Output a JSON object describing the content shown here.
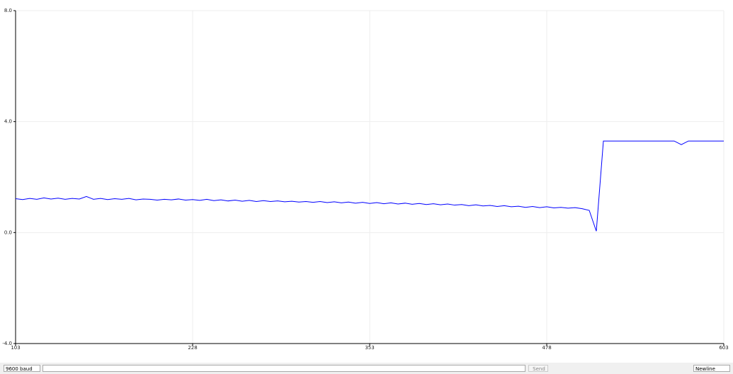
{
  "chart_data": {
    "type": "line",
    "color": "#0000ff",
    "grid": true,
    "x": [
      103,
      108,
      113,
      118,
      123,
      128,
      133,
      138,
      143,
      148,
      153,
      158,
      163,
      168,
      173,
      178,
      183,
      188,
      193,
      198,
      203,
      208,
      213,
      218,
      223,
      228,
      233,
      238,
      243,
      248,
      253,
      258,
      263,
      268,
      273,
      278,
      283,
      288,
      293,
      298,
      303,
      308,
      313,
      318,
      323,
      328,
      333,
      338,
      343,
      348,
      353,
      358,
      363,
      368,
      373,
      378,
      383,
      388,
      393,
      398,
      403,
      408,
      413,
      418,
      423,
      428,
      433,
      438,
      443,
      448,
      453,
      458,
      463,
      468,
      473,
      478,
      483,
      488,
      493,
      498,
      503,
      508,
      513,
      518,
      523,
      528,
      533,
      538,
      543,
      548,
      553,
      558,
      563,
      568,
      573,
      578,
      583,
      588,
      593,
      598,
      603
    ],
    "values": [
      1.22,
      1.19,
      1.23,
      1.2,
      1.25,
      1.21,
      1.24,
      1.2,
      1.23,
      1.21,
      1.3,
      1.2,
      1.23,
      1.19,
      1.22,
      1.2,
      1.23,
      1.18,
      1.21,
      1.2,
      1.17,
      1.2,
      1.18,
      1.21,
      1.17,
      1.19,
      1.16,
      1.2,
      1.15,
      1.18,
      1.14,
      1.17,
      1.13,
      1.16,
      1.12,
      1.15,
      1.12,
      1.14,
      1.11,
      1.13,
      1.1,
      1.12,
      1.09,
      1.12,
      1.08,
      1.11,
      1.07,
      1.1,
      1.06,
      1.09,
      1.05,
      1.08,
      1.04,
      1.07,
      1.03,
      1.06,
      1.02,
      1.05,
      1.01,
      1.04,
      1.0,
      1.03,
      0.99,
      1.01,
      0.97,
      1.0,
      0.96,
      0.98,
      0.94,
      0.97,
      0.93,
      0.95,
      0.91,
      0.94,
      0.9,
      0.93,
      0.89,
      0.91,
      0.88,
      0.9,
      0.86,
      0.8,
      0.05,
      3.3,
      3.3,
      3.3,
      3.3,
      3.3,
      3.3,
      3.3,
      3.3,
      3.3,
      3.3,
      3.3,
      3.17,
      3.3,
      3.3,
      3.3,
      3.3,
      3.3,
      3.3
    ],
    "xlim": [
      103,
      603
    ],
    "xticks": [
      103,
      228,
      353,
      478,
      603
    ],
    "ylim": [
      -4,
      8
    ],
    "yticks": [
      {
        "value": -4,
        "label": "-4.0"
      },
      {
        "value": 0,
        "label": "0.0"
      },
      {
        "value": 4,
        "label": "4.0"
      },
      {
        "value": 8,
        "label": "8.0"
      }
    ]
  },
  "ui": {
    "baud": "9600 baud",
    "send": "Send",
    "line_ending": "Newline"
  }
}
